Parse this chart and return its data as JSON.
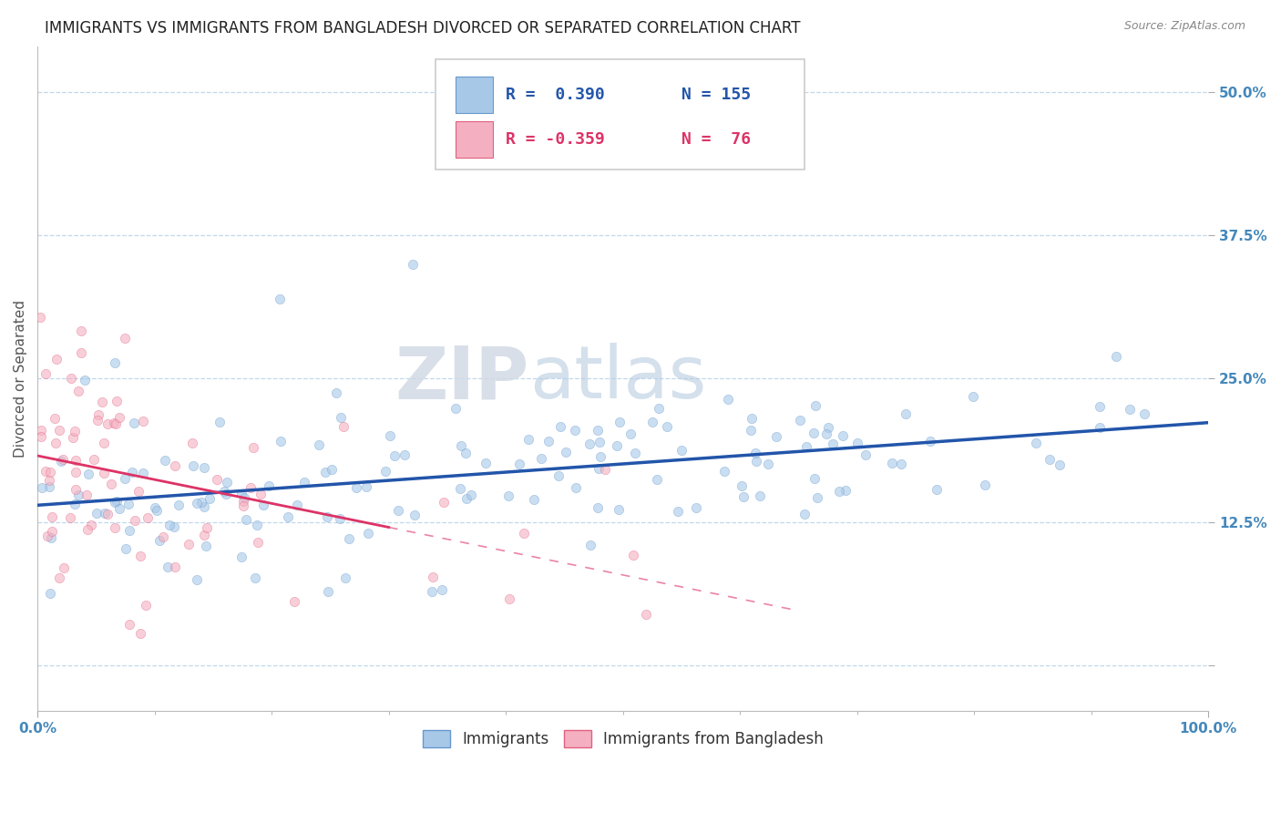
{
  "title": "IMMIGRANTS VS IMMIGRANTS FROM BANGLADESH DIVORCED OR SEPARATED CORRELATION CHART",
  "source_text": "Source: ZipAtlas.com",
  "ylabel": "Divorced or Separated",
  "xlim": [
    0.0,
    1.0
  ],
  "ylim": [
    -0.04,
    0.54
  ],
  "yticks": [
    0.0,
    0.125,
    0.25,
    0.375,
    0.5
  ],
  "ytick_labels": [
    "",
    "12.5%",
    "25.0%",
    "37.5%",
    "50.0%"
  ],
  "legend_r1": "R =  0.390",
  "legend_n1": "N = 155",
  "legend_r2": "R = -0.359",
  "legend_n2": "N =  76",
  "series1_label": "Immigrants",
  "series2_label": "Immigrants from Bangladesh",
  "color1": "#a8c8e8",
  "color2": "#f4b0c0",
  "color1_edge": "#6699cc",
  "color2_edge": "#e06080",
  "line_color1": "#2255aa",
  "line_color2": "#dd3366",
  "tick_color": "#4488bb",
  "background_color": "#ffffff",
  "grid_color": "#c0d8ec",
  "watermark_zip": "ZIP",
  "watermark_atlas": "atlas",
  "title_fontsize": 12,
  "axis_label_fontsize": 11,
  "tick_fontsize": 11,
  "legend_fontsize": 13,
  "n1": 155,
  "n2": 76,
  "scatter_alpha": 0.6,
  "scatter_size": 55
}
